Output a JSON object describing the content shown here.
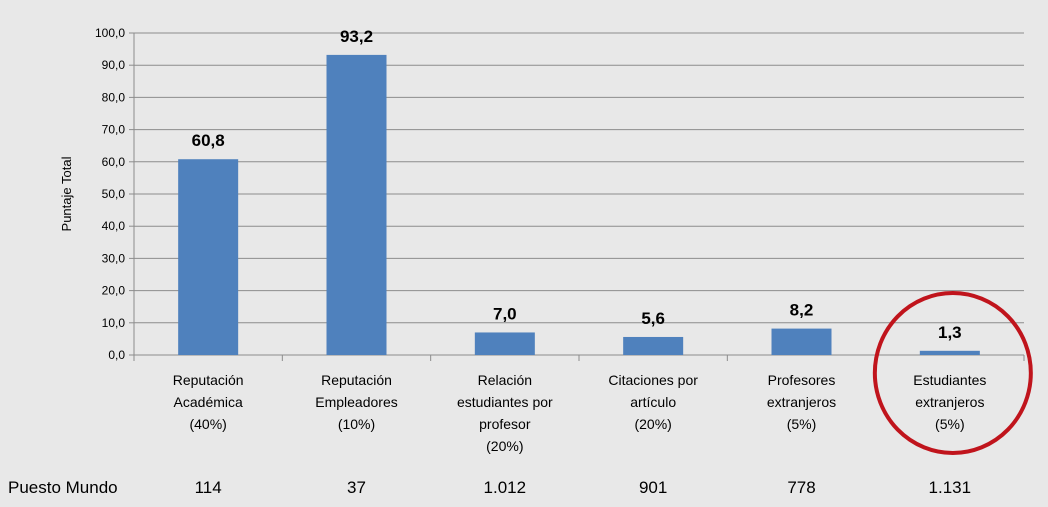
{
  "chart_data": {
    "type": "bar",
    "categories": [
      [
        "Reputación",
        "Académica",
        "(40%)"
      ],
      [
        "Reputación",
        "Empleadores",
        "(10%)"
      ],
      [
        "Relación",
        "estudiantes por",
        "profesor",
        "(20%)"
      ],
      [
        "Citaciones por",
        "artículo",
        "(20%)"
      ],
      [
        "Profesores",
        "extranjeros",
        "(5%)"
      ],
      [
        "Estudiantes",
        "extranjeros",
        "(5%)"
      ]
    ],
    "values": [
      60.8,
      93.2,
      7.0,
      5.6,
      8.2,
      1.3
    ],
    "data_labels": [
      "60,8",
      "93,2",
      "7,0",
      "5,6",
      "8,2",
      "1,3"
    ],
    "ylabel": "Puntaje Total",
    "ylim": [
      0,
      100
    ],
    "yticks": [
      "0,0",
      "10,0",
      "20,0",
      "30,0",
      "40,0",
      "50,0",
      "60,0",
      "70,0",
      "80,0",
      "90,0",
      "100,0"
    ],
    "grid": true,
    "bar_color": "#4f81bd",
    "highlight_color": "#c0141c",
    "highlight_index": 5
  },
  "rank_row": {
    "label": "Puesto Mundo",
    "values": [
      "114",
      "37",
      "1.012",
      "901",
      "778",
      "1.131"
    ]
  }
}
